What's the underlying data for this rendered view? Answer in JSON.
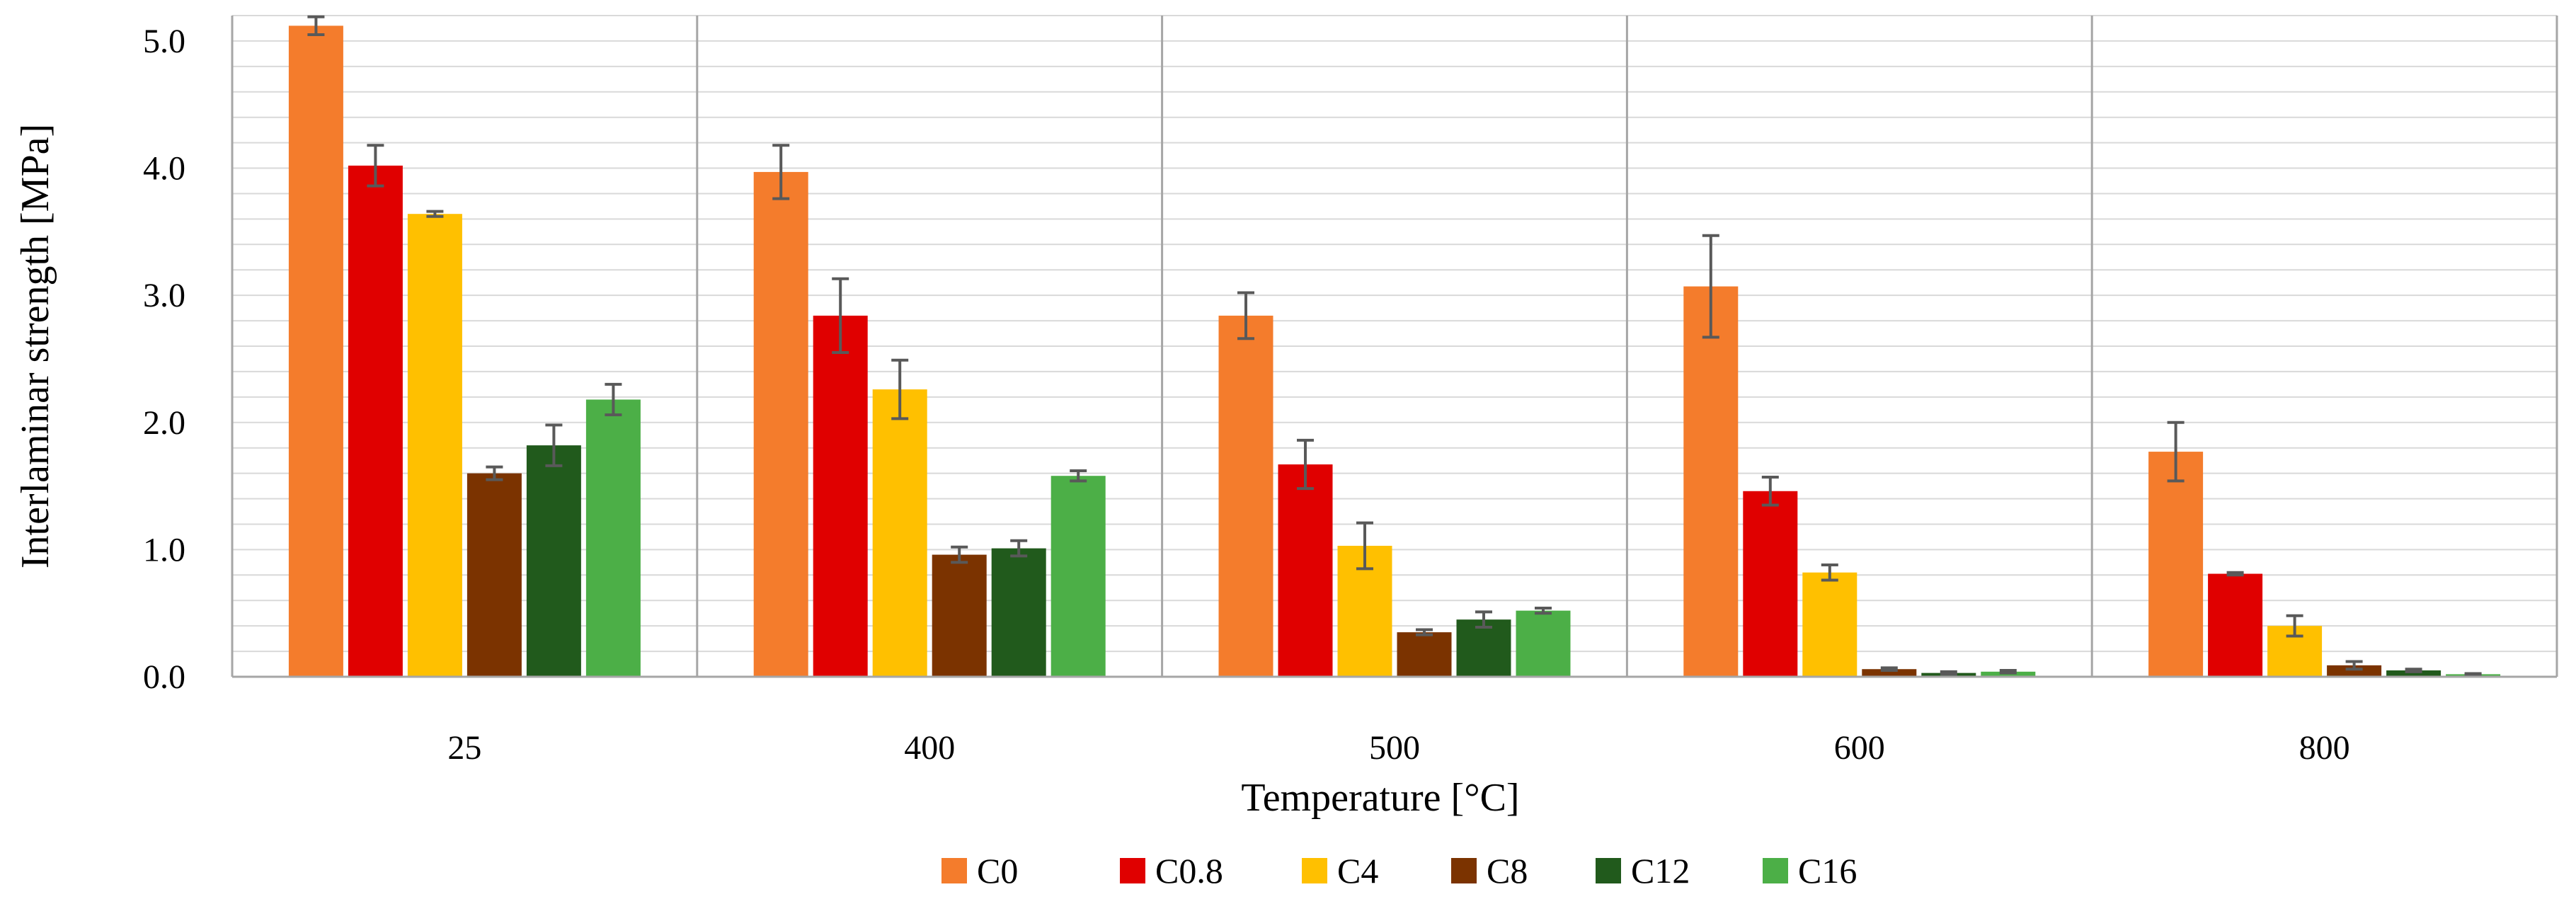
{
  "chart_data": {
    "type": "bar",
    "xlabel": "Temperature [°C]",
    "ylabel": "Interlaminar strength [MPa]",
    "ylim": [
      0,
      5.2
    ],
    "y_ticks": [
      "0.0",
      "1.0",
      "2.0",
      "3.0",
      "4.0",
      "5.0"
    ],
    "grid": true,
    "legend_position": "bottom",
    "categories": [
      "25",
      "400",
      "500",
      "600",
      "800"
    ],
    "series": [
      {
        "name": "C0",
        "color": "#f47c2c",
        "values": [
          5.12,
          3.97,
          2.84,
          3.07,
          1.77
        ],
        "errors": [
          0.07,
          0.21,
          0.18,
          0.4,
          0.23
        ]
      },
      {
        "name": "C0.8",
        "color": "#e00000",
        "values": [
          4.02,
          2.84,
          1.67,
          1.46,
          0.81
        ],
        "errors": [
          0.16,
          0.29,
          0.19,
          0.11,
          0.01
        ]
      },
      {
        "name": "C4",
        "color": "#ffc000",
        "values": [
          3.64,
          2.26,
          1.03,
          0.82,
          0.4
        ],
        "errors": [
          0.02,
          0.23,
          0.18,
          0.06,
          0.08
        ]
      },
      {
        "name": "C8",
        "color": "#7b3300",
        "values": [
          1.6,
          0.96,
          0.35,
          0.06,
          0.09
        ],
        "errors": [
          0.05,
          0.06,
          0.02,
          0.01,
          0.03
        ]
      },
      {
        "name": "C12",
        "color": "#215a1c",
        "values": [
          1.82,
          1.01,
          0.45,
          0.03,
          0.05
        ],
        "errors": [
          0.16,
          0.06,
          0.06,
          0.01,
          0.01
        ]
      },
      {
        "name": "C16",
        "color": "#4caf47",
        "values": [
          2.18,
          1.58,
          0.52,
          0.04,
          0.02
        ],
        "errors": [
          0.12,
          0.04,
          0.02,
          0.01,
          0.005
        ]
      }
    ]
  }
}
